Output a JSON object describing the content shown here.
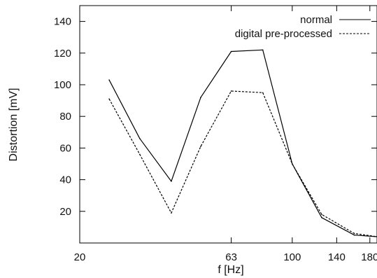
{
  "chart_data": {
    "type": "line",
    "title": "",
    "xlabel": "f [Hz]",
    "ylabel": "Distortion [mV]",
    "x_scale": "log",
    "xlim": [
      20,
      190
    ],
    "ylim": [
      0,
      150
    ],
    "x_ticks": [
      20,
      63,
      100,
      140,
      180
    ],
    "x_tick_labels": [
      "20",
      "63",
      "100",
      "140",
      "180"
    ],
    "y_ticks": [
      20,
      40,
      60,
      80,
      100,
      120,
      140
    ],
    "y_tick_labels": [
      "20",
      "40",
      "60",
      "80",
      "100",
      "120",
      "140"
    ],
    "grid": false,
    "legend_position": "top-right",
    "x": [
      25,
      31.5,
      40,
      50,
      63,
      80,
      100,
      125,
      160,
      190
    ],
    "series": [
      {
        "name": "normal",
        "style": "solid",
        "color": "#000000",
        "values": [
          103,
          66,
          39,
          92,
          121,
          122,
          50,
          16,
          5,
          4
        ]
      },
      {
        "name": "digital pre-processed",
        "style": "dashed",
        "color": "#000000",
        "values": [
          91,
          56,
          19,
          61,
          96,
          95,
          50,
          18,
          6,
          4
        ]
      }
    ]
  }
}
